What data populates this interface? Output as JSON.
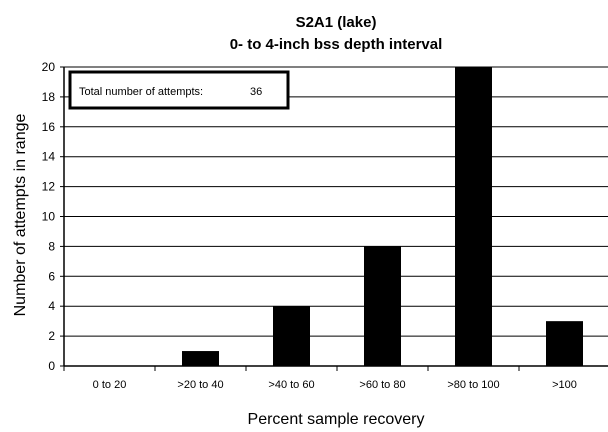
{
  "chart_data": {
    "type": "bar",
    "title": "S2A1 (lake)",
    "subtitle": "0- to 4-inch bss depth interval",
    "xlabel": "Percent sample recovery",
    "ylabel": "Number of attempts in range",
    "categories": [
      "0 to 20",
      ">20 to 40",
      ">40 to 60",
      ">60 to 80",
      ">80 to 100",
      ">100"
    ],
    "values": [
      0,
      1,
      4,
      8,
      20,
      3
    ],
    "ylim": [
      0,
      20
    ],
    "yticks": [
      0,
      2,
      4,
      6,
      8,
      10,
      12,
      14,
      16,
      18,
      20
    ],
    "grid": true,
    "bar_color": "#000000",
    "annotation": {
      "label": "Total number of attempts:",
      "value": "36"
    }
  }
}
